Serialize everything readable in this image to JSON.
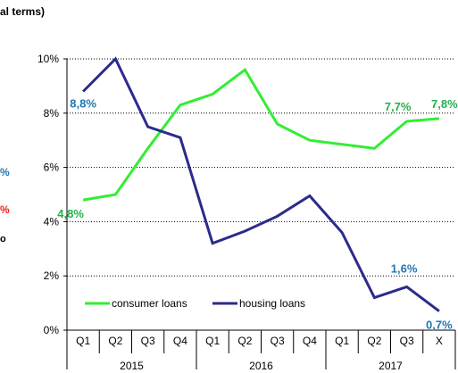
{
  "header": {
    "title": "al terms)",
    "left_fragments": [
      "%",
      "%",
      "o"
    ]
  },
  "chart_data": {
    "type": "line",
    "ylim": [
      0,
      10
    ],
    "yticks": [
      "0%",
      "2%",
      "4%",
      "6%",
      "8%",
      "10%"
    ],
    "categories": [
      "Q1",
      "Q2",
      "Q3",
      "Q4",
      "Q1",
      "Q2",
      "Q3",
      "Q4",
      "Q1",
      "Q2",
      "Q3",
      "X"
    ],
    "years": [
      "2015",
      "2016",
      "2017"
    ],
    "legend_position": "bottom-left",
    "series": [
      {
        "name": "consumer loans",
        "color": "#33ee33",
        "values": [
          4.8,
          5.0,
          6.7,
          8.3,
          8.7,
          9.6,
          7.6,
          7.0,
          6.85,
          6.7,
          7.7,
          7.8
        ]
      },
      {
        "name": "housing loans",
        "color": "#2b2b8c",
        "values": [
          8.8,
          10.0,
          7.5,
          7.1,
          3.2,
          3.65,
          4.2,
          4.95,
          3.6,
          1.2,
          1.6,
          0.7
        ]
      }
    ],
    "data_labels": [
      {
        "series": 0,
        "index": 0,
        "text": "4,8%",
        "color": "#22b14c"
      },
      {
        "series": 0,
        "index": 10,
        "text": "7,7%",
        "color": "#22b14c"
      },
      {
        "series": 0,
        "index": 11,
        "text": "7,8%",
        "color": "#22b14c"
      },
      {
        "series": 1,
        "index": 0,
        "text": "8,8%",
        "color": "#1f77b4"
      },
      {
        "series": 1,
        "index": 10,
        "text": "1,6%",
        "color": "#1f77b4"
      },
      {
        "series": 1,
        "index": 11,
        "text": "0,7%",
        "color": "#1f77b4"
      }
    ]
  }
}
